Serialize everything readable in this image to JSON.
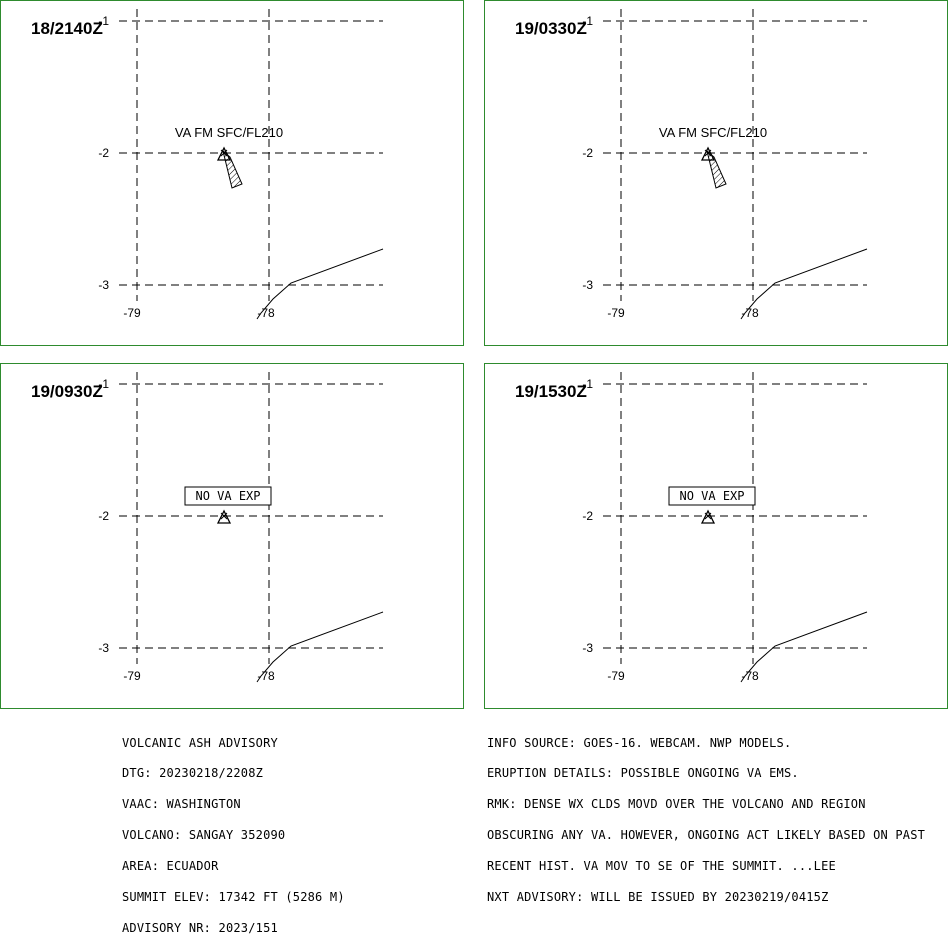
{
  "panels": [
    {
      "time": "18/2140Z",
      "label": "VA FM SFC/FL210",
      "label_boxed": false,
      "ash_cloud": true
    },
    {
      "time": "19/0330Z",
      "label": "VA FM SFC/FL210",
      "label_boxed": false,
      "ash_cloud": true
    },
    {
      "time": "19/0930Z",
      "label": "NO VA EXP",
      "label_boxed": true,
      "ash_cloud": false
    },
    {
      "time": "19/1530Z",
      "label": "NO VA EXP",
      "label_boxed": true,
      "ash_cloud": false
    }
  ],
  "grid": {
    "lat_labels": [
      "-1",
      "-2",
      "-3"
    ],
    "lon_labels": [
      "-79",
      "-78"
    ]
  },
  "advisory_left": [
    "VOLCANIC ASH ADVISORY",
    "DTG: 20230218/2208Z",
    "VAAC: WASHINGTON",
    "VOLCANO: SANGAY 352090",
    "AREA: ECUADOR",
    "SUMMIT ELEV: 17342 FT (5286 M)",
    "ADVISORY NR: 2023/151"
  ],
  "advisory_right": [
    "INFO SOURCE: GOES-16. WEBCAM. NWP MODELS.",
    "ERUPTION DETAILS: POSSIBLE ONGOING VA EMS.",
    "RMK: DENSE WX CLDS MOVD OVER THE VOLCANO AND REGION",
    "OBSCURING ANY VA. HOWEVER, ONGOING ACT LIKELY BASED ON PAST",
    "RECENT HIST. VA MOV TO SE OF THE SUMMIT. ...LEE",
    "NXT ADVISORY: WILL BE ISSUED BY 20230219/0415Z"
  ],
  "colors": {
    "frame": "#2e8b2e",
    "lines": "#000000"
  }
}
